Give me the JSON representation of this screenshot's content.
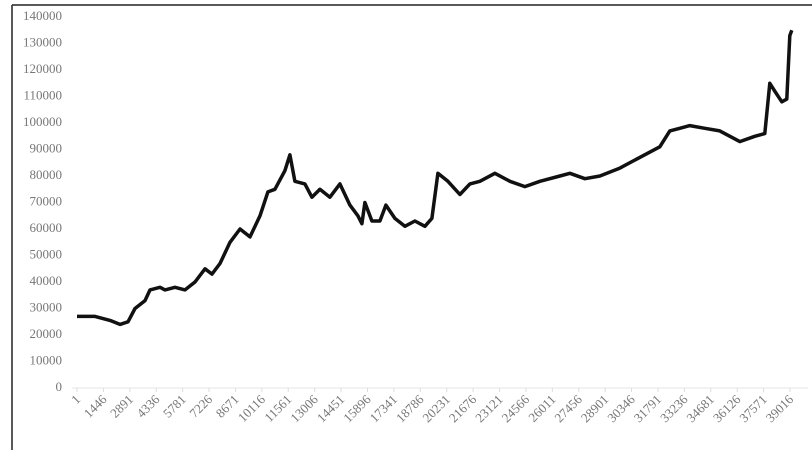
{
  "chart_data": {
    "type": "line",
    "color": "#111111",
    "x": [
      1,
      986,
      1806,
      2353,
      2791,
      3174,
      3721,
      3995,
      4542,
      4815,
      5362,
      5909,
      6456,
      7003,
      7386,
      7824,
      8371,
      8918,
      9465,
      10012,
      10449,
      10832,
      11379,
      11653,
      11926,
      12473,
      12856,
      13294,
      13841,
      14388,
      14935,
      15372,
      15591,
      15755,
      16138,
      16576,
      16904,
      17396,
      17943,
      18490,
      19037,
      19420,
      19748,
      20295,
      20952,
      21499,
      22046,
      22866,
      23687,
      24508,
      25328,
      26422,
      26969,
      27790,
      28611,
      29705,
      30799,
      31893,
      32440,
      32987,
      33534,
      34355,
      35175,
      36269,
      37090,
      37637,
      37910,
      38184,
      38567,
      38840,
      39004,
      39114
    ],
    "values": [
      27000,
      27000,
      25500,
      24000,
      25000,
      30000,
      33000,
      37000,
      38000,
      37000,
      38000,
      37000,
      40000,
      45000,
      43000,
      47000,
      55000,
      60000,
      57000,
      65000,
      74000,
      75000,
      82000,
      88000,
      78000,
      77000,
      72000,
      75000,
      72000,
      77000,
      69000,
      65000,
      62000,
      70000,
      63000,
      63000,
      69000,
      64000,
      61000,
      63000,
      61000,
      64000,
      81000,
      78000,
      73000,
      77000,
      78000,
      81000,
      78000,
      76000,
      78000,
      80000,
      81000,
      79000,
      80000,
      83000,
      87000,
      91000,
      97000,
      98000,
      99000,
      98000,
      97000,
      93000,
      95000,
      96000,
      115000,
      112000,
      108000,
      109000,
      133000,
      135000
    ],
    "xlim": [
      1,
      40000
    ],
    "xticks": [
      1,
      1446,
      2891,
      4336,
      5781,
      7226,
      8671,
      10116,
      11561,
      13006,
      14451,
      15896,
      17341,
      18786,
      20231,
      21676,
      23121,
      24566,
      26011,
      27456,
      28901,
      30346,
      31791,
      33236,
      34681,
      36126,
      37571,
      39016
    ],
    "ylim": [
      0,
      140000
    ],
    "yticks": [
      0,
      10000,
      20000,
      30000,
      40000,
      50000,
      60000,
      70000,
      80000,
      90000,
      100000,
      110000,
      120000,
      130000,
      140000
    ]
  }
}
